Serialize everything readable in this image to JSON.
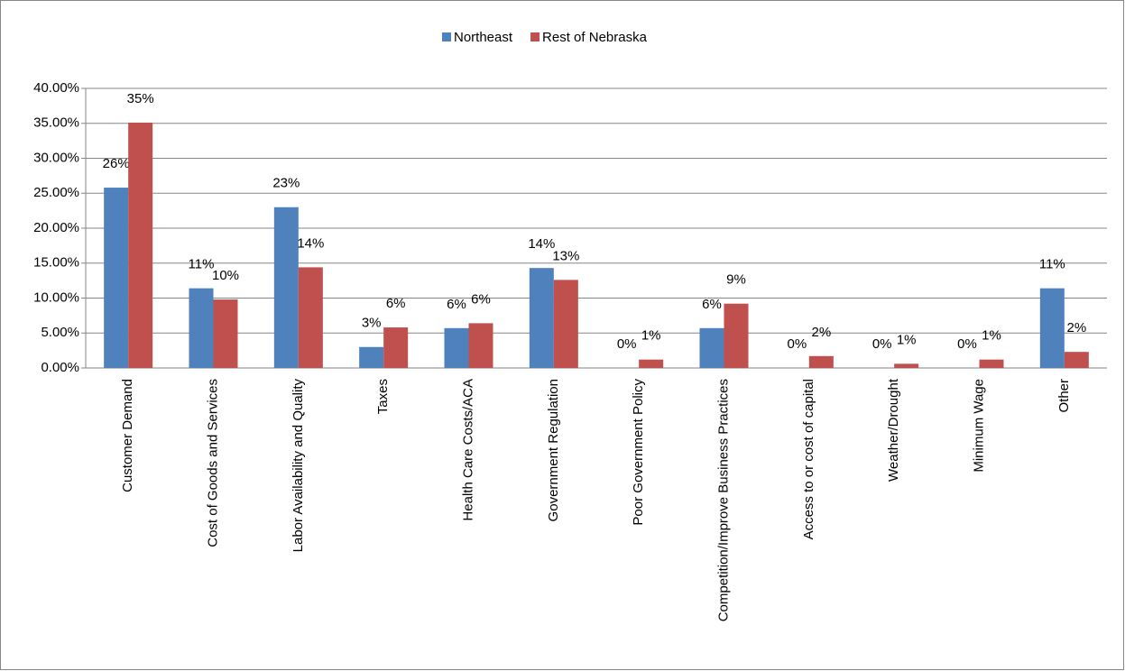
{
  "chart_data": {
    "type": "bar",
    "categories": [
      "Customer Demand",
      "Cost of Goods and Services",
      "Labor Availability and Quality",
      "Taxes",
      "Health Care Costs/ACA",
      "Government Regulation",
      "Poor Government Policy",
      "Competition/Improve Business Practices",
      "Access to or cost of capital",
      "Weather/Drought",
      "Minimum Wage",
      "Other"
    ],
    "series": [
      {
        "name": "Northeast",
        "color": "#4f81bd",
        "values": [
          25.8,
          11.4,
          23.0,
          3.0,
          5.7,
          14.3,
          0,
          5.7,
          0,
          0,
          0,
          11.4
        ],
        "value_labels": [
          "26%",
          "11%",
          "23%",
          "3%",
          "6%",
          "14%",
          "0%",
          "6%",
          "0%",
          "0%",
          "0%",
          "11%"
        ]
      },
      {
        "name": "Rest of Nebraska",
        "color": "#c0504d",
        "values": [
          35.1,
          9.8,
          14.4,
          5.8,
          6.4,
          12.6,
          1.2,
          9.2,
          1.7,
          0.6,
          1.2,
          2.3
        ],
        "value_labels": [
          "35%",
          "10%",
          "14%",
          "6%",
          "6%",
          "13%",
          "1%",
          "9%",
          "2%",
          "1%",
          "1%",
          "2%"
        ]
      }
    ],
    "ylim": [
      0,
      40
    ],
    "yticks": [
      {
        "value": 0,
        "label": "0.00%"
      },
      {
        "value": 5,
        "label": "5.00%"
      },
      {
        "value": 10,
        "label": "10.00%"
      },
      {
        "value": 15,
        "label": "15.00%"
      },
      {
        "value": 20,
        "label": "20.00%"
      },
      {
        "value": 25,
        "label": "25.00%"
      },
      {
        "value": 30,
        "label": "30.00%"
      },
      {
        "value": 35,
        "label": "35.00%"
      },
      {
        "value": 40,
        "label": "40.00%"
      }
    ],
    "grid": true,
    "legend": "top"
  }
}
